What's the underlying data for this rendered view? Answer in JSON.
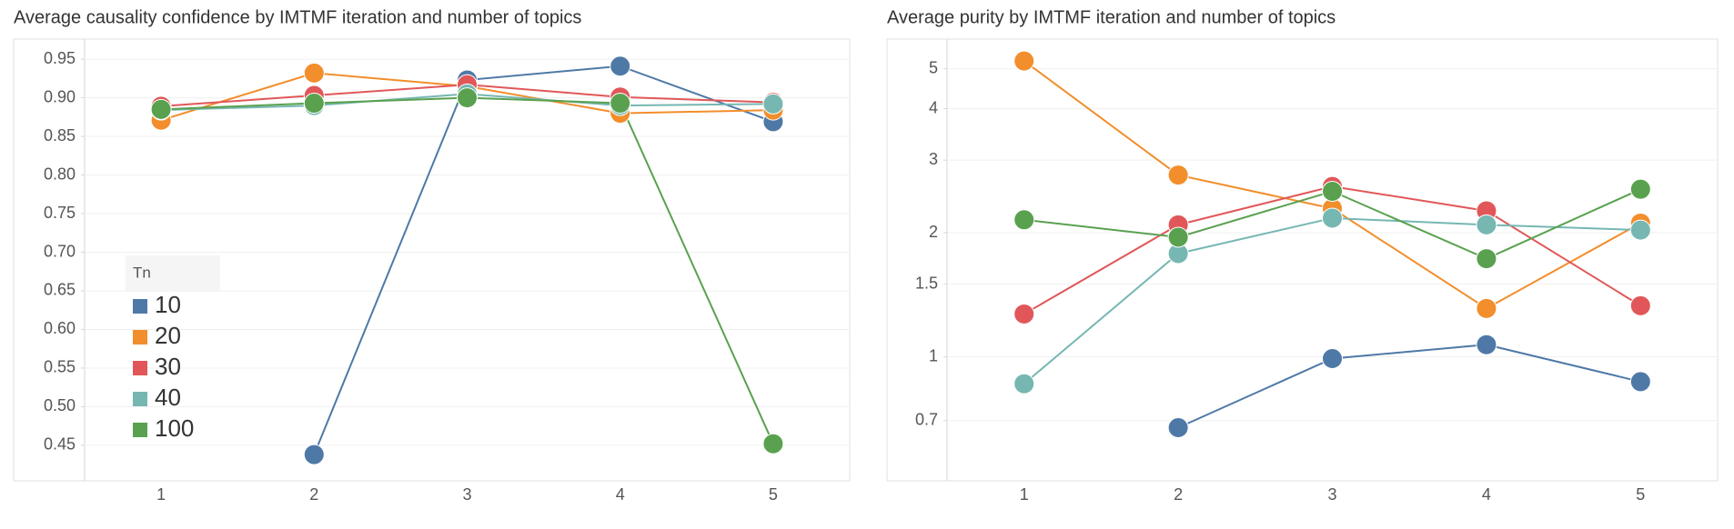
{
  "chart_data": [
    {
      "type": "line",
      "title": "Average causality confidence by IMTMF iteration and number of topics",
      "categories": [
        "1",
        "2",
        "3",
        "4",
        "5"
      ],
      "series": [
        {
          "name": "10",
          "color": "#4e79a7",
          "values": [
            null,
            0.438,
            0.923,
            0.941,
            0.869
          ]
        },
        {
          "name": "20",
          "color": "#f28e2b",
          "values": [
            0.871,
            0.932,
            0.915,
            0.88,
            0.884
          ]
        },
        {
          "name": "30",
          "color": "#e15759",
          "values": [
            0.889,
            0.903,
            0.917,
            0.901,
            0.894
          ]
        },
        {
          "name": "40",
          "color": "#76b7b2",
          "values": [
            0.884,
            0.89,
            0.905,
            0.89,
            0.892
          ]
        },
        {
          "name": "100",
          "color": "#59a14f",
          "values": [
            0.885,
            0.893,
            0.9,
            0.893,
            0.452
          ]
        }
      ],
      "ylim": [
        0.404,
        0.976
      ],
      "yticks": [
        0.45,
        {
          "value": 0.5,
          "label": "0.50"
        },
        0.55,
        {
          "value": 0.6,
          "label": "0.60"
        },
        0.65,
        {
          "value": 0.7,
          "label": "0.70"
        },
        0.75,
        {
          "value": 0.8,
          "label": "0.80"
        },
        0.85,
        {
          "value": 0.9,
          "label": "0.90"
        },
        0.95
      ],
      "grid": true,
      "log_scale": false,
      "legend": "lower-left",
      "legend_title": "Tn"
    },
    {
      "type": "line",
      "title": "Average purity by IMTMF iteration and number of topics",
      "categories": [
        "1",
        "2",
        "3",
        "4",
        "5"
      ],
      "series": [
        {
          "color": "#4e79a7",
          "values": [
            null,
            0.673,
            0.99,
            1.07,
            0.87
          ]
        },
        {
          "color": "#f28e2b",
          "values": [
            5.22,
            2.76,
            2.29,
            1.31,
            2.11
          ]
        },
        {
          "color": "#e15759",
          "values": [
            1.27,
            2.09,
            2.59,
            2.26,
            1.33
          ]
        },
        {
          "color": "#76b7b2",
          "values": [
            0.86,
            1.78,
            2.17,
            2.09,
            2.03
          ]
        },
        {
          "color": "#59a14f",
          "values": [
            2.15,
            1.95,
            2.52,
            1.73,
            2.55
          ]
        }
      ],
      "ylim": [
        0.5,
        5.9
      ],
      "yticks": [
        0.7,
        1,
        1.5,
        2,
        3,
        4,
        5
      ],
      "grid": true,
      "log_scale": true
    }
  ]
}
